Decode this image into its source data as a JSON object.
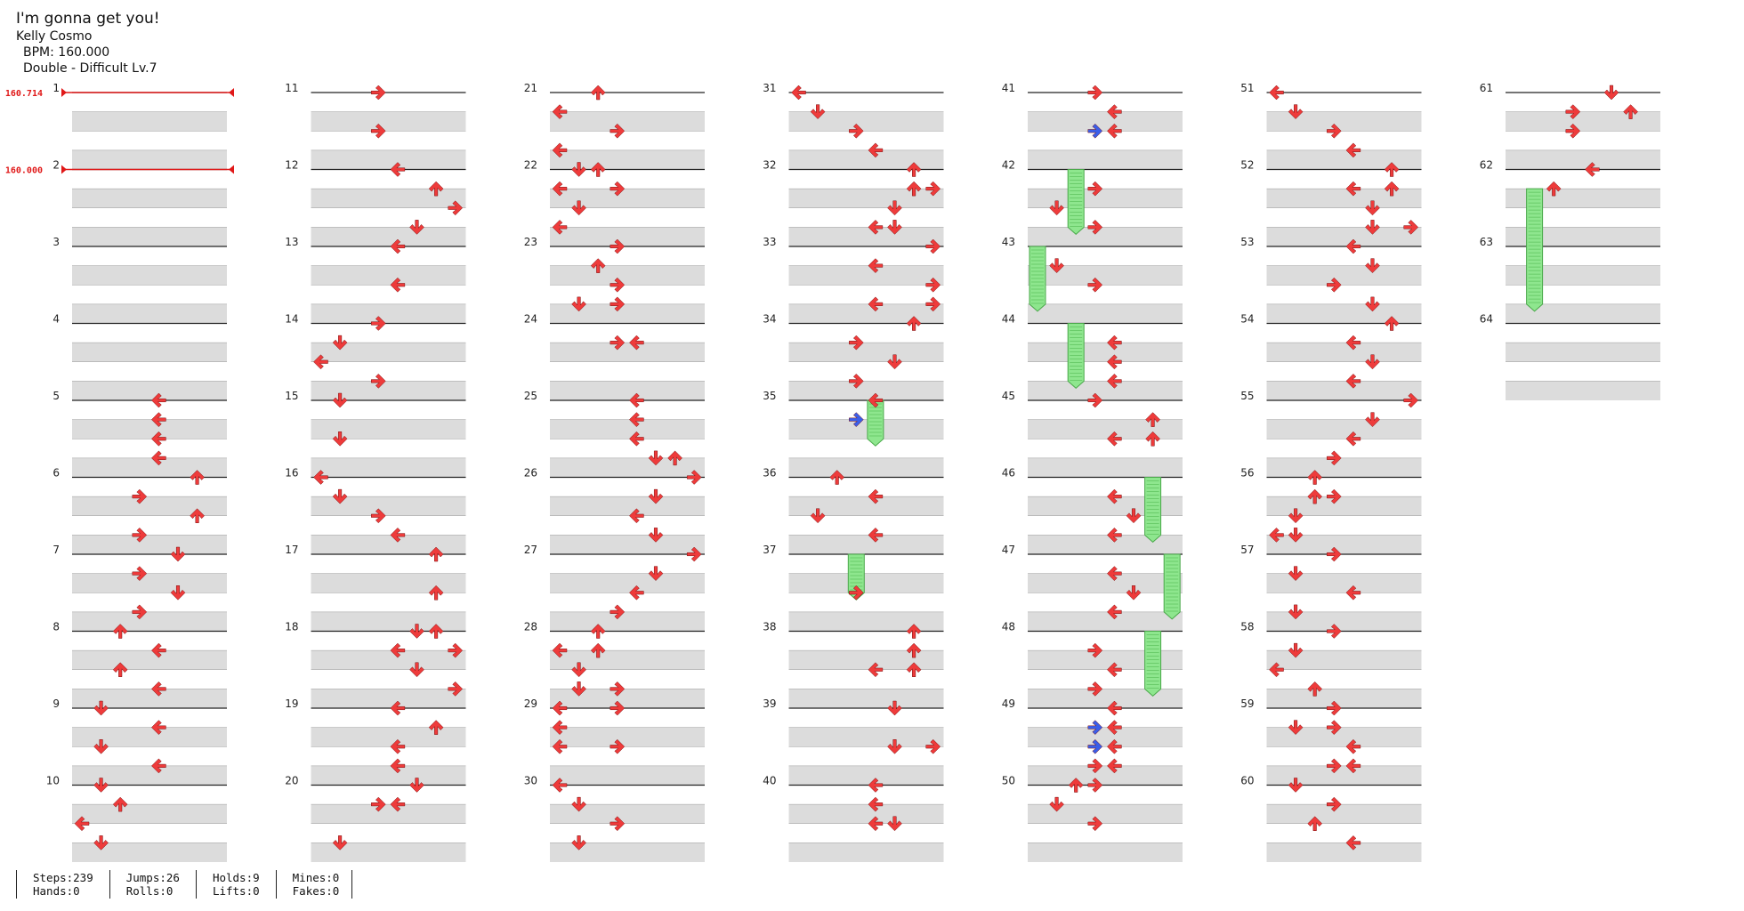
{
  "song": {
    "title": "I'm gonna get you!",
    "artist": "Kelly Cosmo",
    "bpm_line": "BPM: 160.000",
    "difficulty_line": "Double - Difficult  Lv.7"
  },
  "bpm_changes": [
    {
      "measure": 1,
      "label": "160.714"
    },
    {
      "measure": 2,
      "label": "160.000"
    }
  ],
  "colors": {
    "tap": "#ee3b3b",
    "tap_blue": "#3b5ee8",
    "hold": "#8ee68e",
    "hold_edge": "#4aa84a",
    "row_shade": "#dcdcdc",
    "bpm": "#e01818"
  },
  "chart_data": {
    "type": "table",
    "columns": 7,
    "measures_per_column": 10,
    "rows_per_measure": 4,
    "total_measures": 64,
    "lanes": 8,
    "lane_directions": [
      "left",
      "down",
      "up",
      "right",
      "left",
      "down",
      "up",
      "right"
    ],
    "taps": [
      [
        5,
        0,
        4
      ],
      [
        5,
        1,
        4
      ],
      [
        5,
        2,
        4
      ],
      [
        5,
        3,
        4
      ],
      [
        6,
        0,
        6
      ],
      [
        6,
        1,
        3
      ],
      [
        6,
        2,
        6
      ],
      [
        6,
        3,
        3
      ],
      [
        7,
        0,
        5
      ],
      [
        7,
        1,
        3
      ],
      [
        7,
        2,
        5
      ],
      [
        7,
        3,
        3
      ],
      [
        8,
        0,
        2
      ],
      [
        8,
        1,
        4
      ],
      [
        8,
        2,
        2
      ],
      [
        8,
        3,
        4
      ],
      [
        9,
        0,
        1
      ],
      [
        9,
        1,
        4
      ],
      [
        9,
        2,
        1
      ],
      [
        9,
        3,
        4
      ],
      [
        10,
        0,
        1
      ],
      [
        10,
        1,
        2
      ],
      [
        10,
        2,
        0
      ],
      [
        10,
        3,
        1
      ],
      [
        11,
        0,
        3
      ],
      [
        11,
        2,
        3
      ],
      [
        12,
        0,
        4
      ],
      [
        12,
        1,
        6
      ],
      [
        12,
        2,
        7
      ],
      [
        12,
        3,
        5
      ],
      [
        13,
        0,
        4
      ],
      [
        13,
        2,
        4
      ],
      [
        14,
        0,
        3
      ],
      [
        14,
        1,
        1
      ],
      [
        14,
        2,
        0
      ],
      [
        14,
        3,
        3
      ],
      [
        15,
        0,
        1
      ],
      [
        15,
        2,
        1
      ],
      [
        16,
        0,
        0
      ],
      [
        16,
        1,
        1
      ],
      [
        16,
        2,
        3
      ],
      [
        16,
        3,
        4
      ],
      [
        17,
        0,
        6
      ],
      [
        17,
        2,
        6
      ],
      [
        18,
        0,
        5
      ],
      [
        18,
        0,
        6
      ],
      [
        18,
        1,
        4
      ],
      [
        18,
        1,
        7
      ],
      [
        18,
        2,
        5
      ],
      [
        18,
        3,
        7
      ],
      [
        19,
        0,
        4
      ],
      [
        19,
        1,
        6
      ],
      [
        19,
        2,
        4
      ],
      [
        19,
        3,
        4
      ],
      [
        20,
        0,
        5
      ],
      [
        20,
        1,
        3
      ],
      [
        20,
        1,
        4
      ],
      [
        20,
        3,
        1
      ],
      [
        21,
        0,
        2
      ],
      [
        21,
        1,
        0
      ],
      [
        21,
        2,
        3
      ],
      [
        21,
        3,
        0
      ],
      [
        22,
        0,
        1
      ],
      [
        22,
        0,
        2
      ],
      [
        22,
        1,
        0
      ],
      [
        22,
        1,
        3
      ],
      [
        22,
        2,
        1
      ],
      [
        22,
        3,
        0
      ],
      [
        23,
        0,
        3
      ],
      [
        23,
        1,
        2
      ],
      [
        23,
        2,
        3
      ],
      [
        23,
        3,
        1
      ],
      [
        23,
        3,
        3
      ],
      [
        24,
        1,
        3
      ],
      [
        24,
        1,
        4
      ],
      [
        25,
        0,
        4
      ],
      [
        25,
        1,
        4
      ],
      [
        25,
        2,
        4
      ],
      [
        25,
        3,
        5
      ],
      [
        25,
        3,
        6
      ],
      [
        26,
        0,
        7
      ],
      [
        26,
        1,
        5
      ],
      [
        26,
        2,
        4
      ],
      [
        26,
        3,
        5
      ],
      [
        27,
        0,
        7
      ],
      [
        27,
        1,
        5
      ],
      [
        27,
        2,
        4
      ],
      [
        27,
        3,
        3
      ],
      [
        28,
        0,
        2
      ],
      [
        28,
        1,
        0
      ],
      [
        28,
        1,
        2
      ],
      [
        28,
        2,
        1
      ],
      [
        28,
        3,
        1
      ],
      [
        28,
        3,
        3
      ],
      [
        29,
        0,
        0
      ],
      [
        29,
        0,
        3
      ],
      [
        29,
        1,
        0
      ],
      [
        29,
        2,
        0
      ],
      [
        29,
        2,
        3
      ],
      [
        30,
        0,
        0
      ],
      [
        30,
        1,
        1
      ],
      [
        30,
        2,
        3
      ],
      [
        30,
        3,
        1
      ],
      [
        31,
        0,
        0
      ],
      [
        31,
        1,
        1
      ],
      [
        31,
        2,
        3
      ],
      [
        31,
        3,
        4
      ],
      [
        32,
        0,
        6
      ],
      [
        32,
        1,
        6
      ],
      [
        32,
        1,
        7
      ],
      [
        32,
        2,
        5
      ],
      [
        32,
        3,
        4
      ],
      [
        32,
        3,
        5
      ],
      [
        33,
        0,
        7
      ],
      [
        33,
        1,
        4
      ],
      [
        33,
        2,
        7
      ],
      [
        33,
        3,
        4
      ],
      [
        33,
        3,
        7
      ],
      [
        34,
        0,
        6
      ],
      [
        34,
        1,
        3
      ],
      [
        34,
        2,
        5
      ],
      [
        34,
        3,
        3
      ],
      [
        35,
        0,
        4
      ],
      [
        36,
        0,
        2
      ],
      [
        36,
        1,
        4
      ],
      [
        36,
        2,
        1
      ],
      [
        36,
        3,
        4
      ],
      [
        37,
        2,
        3
      ],
      [
        38,
        0,
        6
      ],
      [
        38,
        1,
        6
      ],
      [
        38,
        2,
        4
      ],
      [
        38,
        2,
        6
      ],
      [
        39,
        0,
        5
      ],
      [
        39,
        2,
        5
      ],
      [
        39,
        2,
        7
      ],
      [
        40,
        0,
        4
      ],
      [
        40,
        1,
        4
      ],
      [
        40,
        2,
        4
      ],
      [
        40,
        2,
        5
      ],
      [
        41,
        0,
        3
      ],
      [
        41,
        1,
        4
      ],
      [
        41,
        2,
        4
      ],
      [
        42,
        1,
        3
      ],
      [
        42,
        2,
        1
      ],
      [
        42,
        3,
        3
      ],
      [
        43,
        1,
        1
      ],
      [
        43,
        2,
        3
      ],
      [
        44,
        1,
        4
      ],
      [
        44,
        2,
        4
      ],
      [
        44,
        3,
        4
      ],
      [
        45,
        0,
        3
      ],
      [
        45,
        1,
        6
      ],
      [
        45,
        2,
        4
      ],
      [
        45,
        2,
        6
      ],
      [
        46,
        1,
        4
      ],
      [
        46,
        2,
        5
      ],
      [
        46,
        3,
        4
      ],
      [
        47,
        1,
        4
      ],
      [
        47,
        2,
        5
      ],
      [
        47,
        3,
        4
      ],
      [
        48,
        1,
        3
      ],
      [
        48,
        2,
        4
      ],
      [
        48,
        3,
        3
      ],
      [
        49,
        0,
        4
      ],
      [
        49,
        1,
        4
      ],
      [
        49,
        2,
        4
      ],
      [
        49,
        3,
        3
      ],
      [
        49,
        3,
        4
      ],
      [
        50,
        0,
        2
      ],
      [
        50,
        0,
        3
      ],
      [
        50,
        1,
        1
      ],
      [
        50,
        2,
        3
      ],
      [
        51,
        0,
        0
      ],
      [
        51,
        1,
        1
      ],
      [
        51,
        2,
        3
      ],
      [
        51,
        3,
        4
      ],
      [
        52,
        0,
        6
      ],
      [
        52,
        1,
        4
      ],
      [
        52,
        1,
        6
      ],
      [
        52,
        2,
        5
      ],
      [
        52,
        3,
        5
      ],
      [
        52,
        3,
        7
      ],
      [
        53,
        0,
        4
      ],
      [
        53,
        1,
        5
      ],
      [
        53,
        2,
        3
      ],
      [
        53,
        3,
        5
      ],
      [
        54,
        0,
        6
      ],
      [
        54,
        1,
        4
      ],
      [
        54,
        2,
        5
      ],
      [
        54,
        3,
        4
      ],
      [
        55,
        0,
        7
      ],
      [
        55,
        1,
        5
      ],
      [
        55,
        2,
        4
      ],
      [
        55,
        3,
        3
      ],
      [
        56,
        0,
        2
      ],
      [
        56,
        1,
        2
      ],
      [
        56,
        1,
        3
      ],
      [
        56,
        2,
        1
      ],
      [
        56,
        3,
        0
      ],
      [
        56,
        3,
        1
      ],
      [
        57,
        0,
        3
      ],
      [
        57,
        1,
        1
      ],
      [
        57,
        2,
        4
      ],
      [
        57,
        3,
        1
      ],
      [
        58,
        0,
        3
      ],
      [
        58,
        1,
        1
      ],
      [
        58,
        2,
        0
      ],
      [
        58,
        3,
        2
      ],
      [
        59,
        0,
        3
      ],
      [
        59,
        1,
        1
      ],
      [
        59,
        1,
        3
      ],
      [
        59,
        2,
        4
      ],
      [
        59,
        3,
        3
      ],
      [
        59,
        3,
        4
      ],
      [
        60,
        0,
        1
      ],
      [
        60,
        1,
        3
      ],
      [
        60,
        2,
        2
      ],
      [
        60,
        3,
        4
      ],
      [
        61,
        0,
        5
      ],
      [
        61,
        1,
        3
      ],
      [
        61,
        1,
        6
      ],
      [
        61,
        2,
        3
      ],
      [
        62,
        0,
        4
      ],
      [
        62,
        1,
        2
      ]
    ],
    "blue_taps": [
      [
        41,
        2,
        3
      ],
      [
        35,
        1,
        3
      ],
      [
        49,
        1,
        3
      ],
      [
        49,
        2,
        3
      ]
    ],
    "holds": [
      [
        35,
        0,
        4,
        35,
        2,
        4,
        "red",
        "blue"
      ],
      [
        37,
        0,
        3,
        37,
        2,
        3,
        "blue",
        "none"
      ],
      [
        42,
        0,
        2,
        42,
        3,
        2,
        "red",
        "none"
      ],
      [
        43,
        0,
        0,
        43,
        3,
        0,
        "red",
        "none"
      ],
      [
        44,
        0,
        2,
        44,
        3,
        2,
        "red",
        "none"
      ],
      [
        46,
        0,
        6,
        46,
        3,
        6,
        "red",
        "none"
      ],
      [
        47,
        0,
        7,
        47,
        3,
        7,
        "red",
        "none"
      ],
      [
        48,
        0,
        6,
        48,
        3,
        6,
        "red",
        "none"
      ],
      [
        62,
        1,
        1,
        63,
        3,
        1,
        "blue",
        "none"
      ]
    ]
  },
  "stats": {
    "columns": [
      [
        "Steps:239",
        "Hands:0"
      ],
      [
        "Jumps:26",
        "Rolls:0"
      ],
      [
        "Holds:9",
        "Lifts:0"
      ],
      [
        "Mines:0",
        "Fakes:0"
      ]
    ]
  }
}
